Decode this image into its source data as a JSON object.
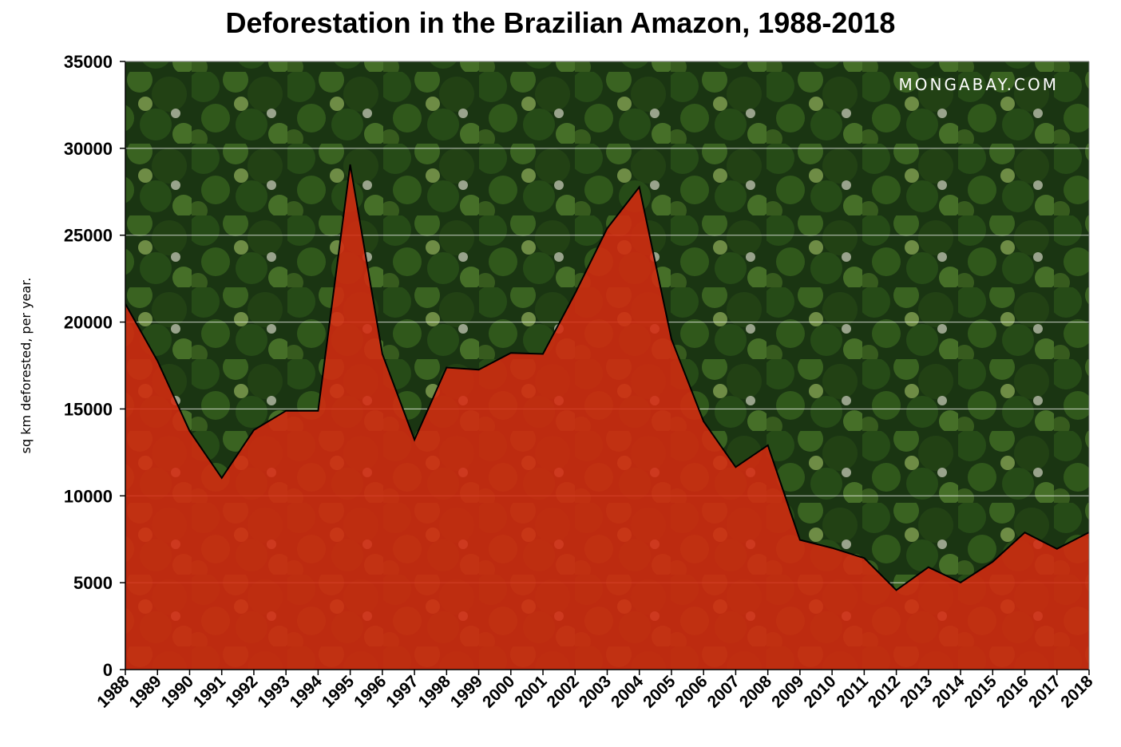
{
  "chart_data": {
    "type": "area",
    "title": "Deforestation in the Brazilian Amazon, 1988-2018",
    "xlabel": "",
    "ylabel": "sq km deforested, per year.",
    "watermark": "MONGABAY.COM",
    "x": [
      "1988",
      "1989",
      "1990",
      "1991",
      "1992",
      "1993",
      "1994",
      "1995",
      "1996",
      "1997",
      "1998",
      "1999",
      "2000",
      "2001",
      "2002",
      "2003",
      "2004",
      "2005",
      "2006",
      "2007",
      "2008",
      "2009",
      "2010",
      "2011",
      "2012",
      "2013",
      "2014",
      "2015",
      "2016",
      "2017",
      "2018"
    ],
    "values": [
      21050,
      17770,
      13730,
      11030,
      13786,
      14896,
      14896,
      29059,
      18161,
      13227,
      17383,
      17259,
      18226,
      18165,
      21651,
      25396,
      27772,
      19014,
      14286,
      11651,
      12911,
      7464,
      7000,
      6418,
      4571,
      5891,
      5012,
      6207,
      7893,
      6947,
      7900
    ],
    "ylim": [
      0,
      35000
    ],
    "yticks": [
      "0",
      "5000",
      "10000",
      "15000",
      "20000",
      "25000",
      "30000",
      "35000"
    ],
    "grid": true,
    "colors": {
      "area_fill": "#d42a10",
      "line": "#000000",
      "forest_dark": "#1f3d16",
      "forest_mid": "#3c6b22",
      "forest_light": "#7fa84a",
      "gridline": "#ffffff"
    }
  }
}
